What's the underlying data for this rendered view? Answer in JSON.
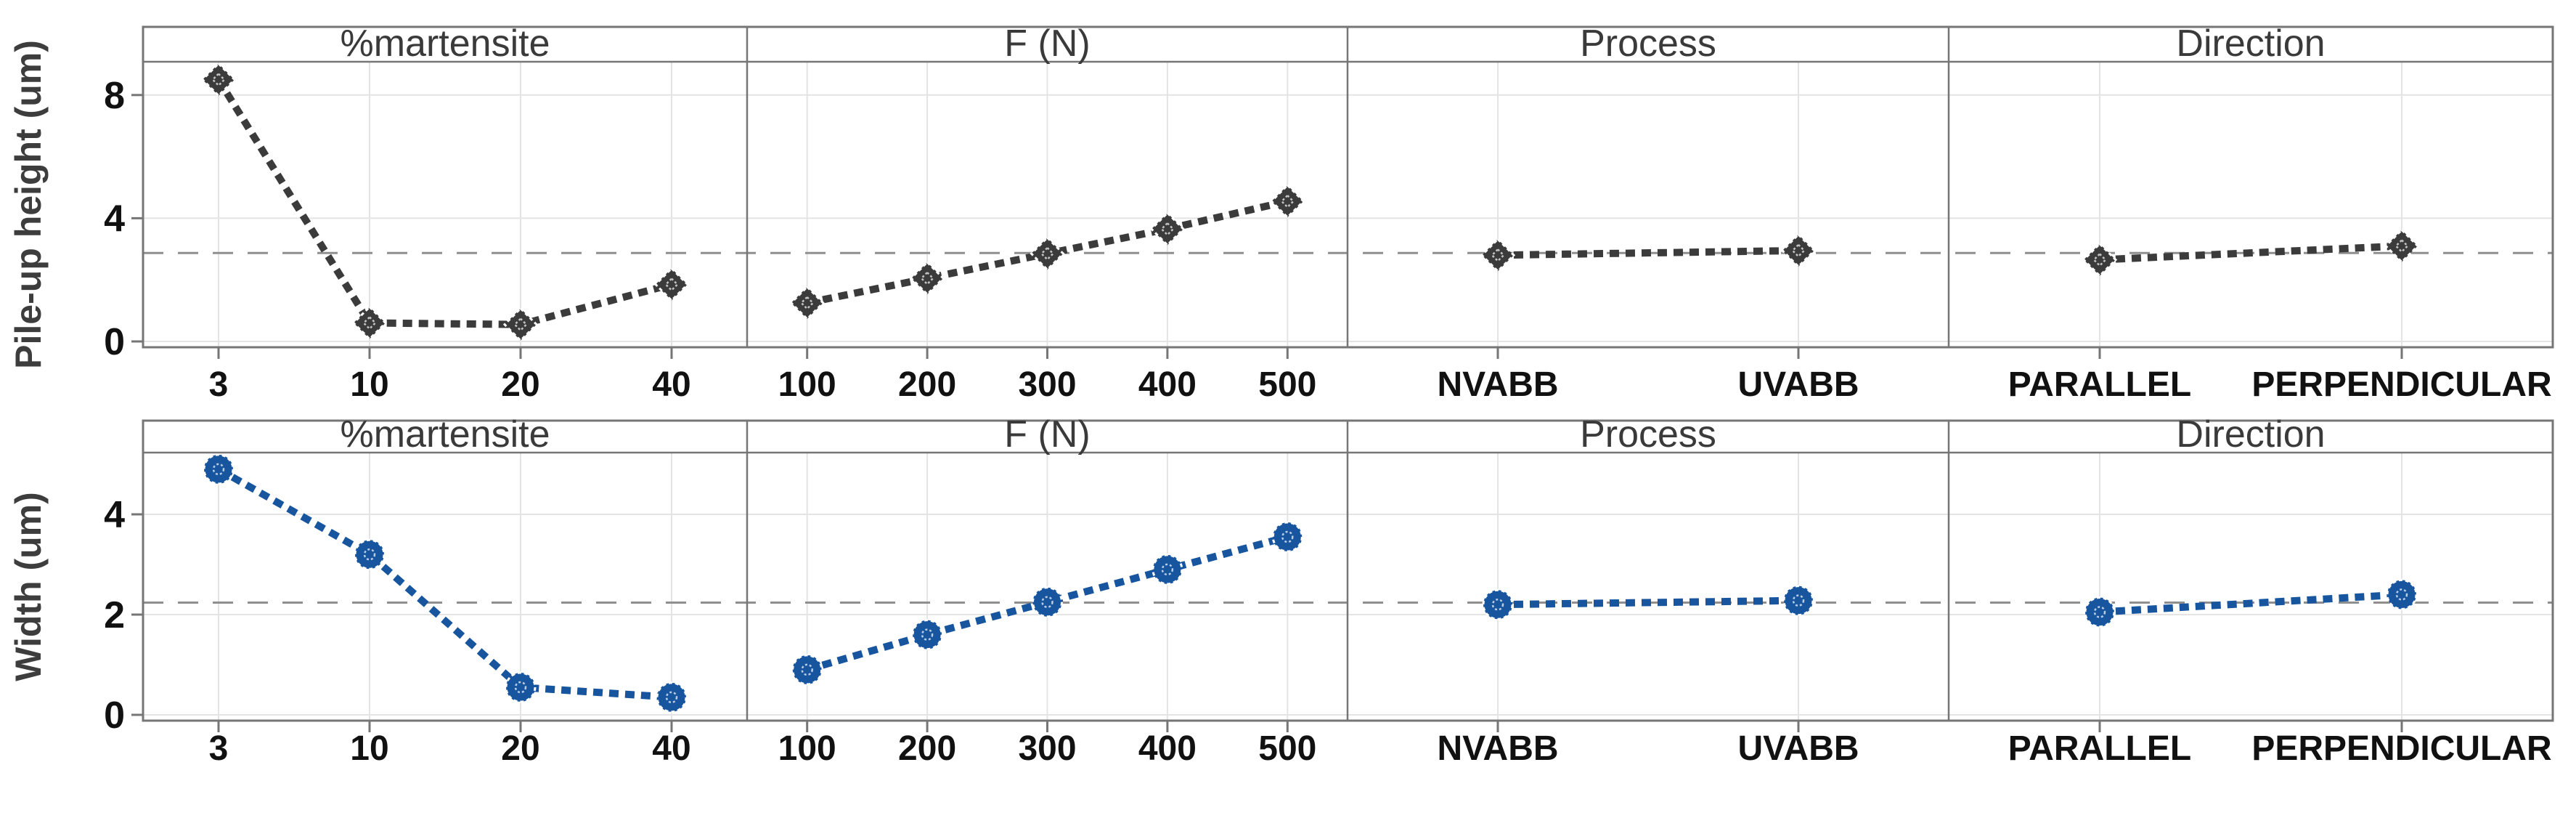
{
  "figure": {
    "kind": "main-effects-plot",
    "rows_count": 2,
    "panels_per_row": 4
  },
  "colors": {
    "background": "#ffffff",
    "frame": "#767676",
    "gridline": "#e4e4e4",
    "mean_line": "#8f8f8f",
    "tick_text": "#111111",
    "header_text": "#3a3a3a",
    "axis_title_text": "#3d3d3d",
    "series_dark": "#3b3b3b",
    "series_blue": "#17559f"
  },
  "chart_data": {
    "type": "line",
    "title": "",
    "legend_position": "none",
    "grid": true,
    "mean_line_style": "dashed",
    "rows": [
      {
        "ylabel": "Pile-up height (um)",
        "yticks": [
          0,
          4,
          8
        ],
        "ylim": [
          -0.19,
          9.08
        ],
        "grand_mean": 2.87,
        "series_color": "#3b3b3b",
        "marker": "diamond",
        "panels": [
          {
            "label": "%martensite",
            "categories": [
              "3",
              "10",
              "20",
              "40"
            ],
            "values": [
              8.5,
              0.6,
              0.55,
              1.85
            ]
          },
          {
            "label": "F (N)",
            "categories": [
              "100",
              "200",
              "300",
              "400",
              "500"
            ],
            "values": [
              1.25,
              2.05,
              2.85,
              3.65,
              4.55
            ]
          },
          {
            "label": "Process",
            "categories": [
              "NVABB",
              "UVABB"
            ],
            "values": [
              2.8,
              2.95
            ]
          },
          {
            "label": "Direction",
            "categories": [
              "PARALLEL",
              "PERPENDICULAR"
            ],
            "values": [
              2.65,
              3.1
            ]
          }
        ]
      },
      {
        "ylabel": "Width (um)",
        "yticks": [
          0,
          2,
          4
        ],
        "ylim": [
          -0.12,
          5.23
        ],
        "grand_mean": 2.24,
        "series_color": "#17559f",
        "marker": "circle",
        "panels": [
          {
            "label": "%martensite",
            "categories": [
              "3",
              "10",
              "20",
              "40"
            ],
            "values": [
              4.9,
              3.2,
              0.55,
              0.35
            ]
          },
          {
            "label": "F (N)",
            "categories": [
              "100",
              "200",
              "300",
              "400",
              "500"
            ],
            "values": [
              0.9,
              1.6,
              2.25,
              2.9,
              3.55
            ]
          },
          {
            "label": "Process",
            "categories": [
              "NVABB",
              "UVABB"
            ],
            "values": [
              2.2,
              2.28
            ]
          },
          {
            "label": "Direction",
            "categories": [
              "PARALLEL",
              "PERPENDICULAR"
            ],
            "values": [
              2.05,
              2.4
            ]
          }
        ]
      }
    ]
  }
}
